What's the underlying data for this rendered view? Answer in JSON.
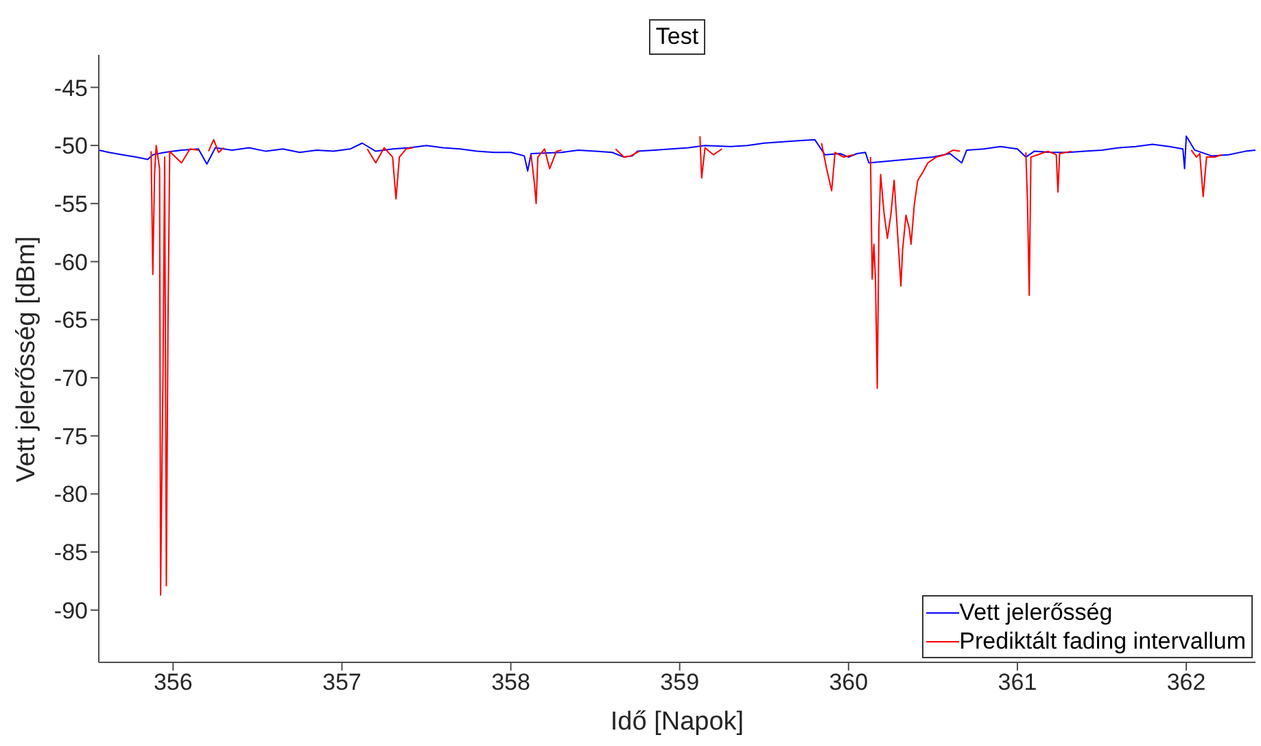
{
  "chart_data": {
    "type": "line",
    "title": "Test",
    "xlabel": "Idő [Napok]",
    "ylabel": "Vett jelerősség [dBm]",
    "xlim": [
      355.56,
      362.41
    ],
    "xticks": [
      356,
      357,
      358,
      359,
      360,
      361,
      362
    ],
    "ylim": [
      -94.5,
      -42.2
    ],
    "yticks": [
      -90,
      -85,
      -80,
      -75,
      -70,
      -65,
      -60,
      -55,
      -50,
      -45
    ],
    "legend": "bottom right",
    "marker": "none",
    "line_style": "solid",
    "series": [
      {
        "name": "Vett jelerősség",
        "color": "#0000ff",
        "x": [
          355.56,
          355.62,
          355.7,
          355.78,
          355.85,
          355.88,
          355.95,
          356.05,
          356.15,
          356.2,
          356.25,
          356.35,
          356.45,
          356.55,
          356.65,
          356.75,
          356.85,
          356.95,
          357.05,
          357.12,
          357.2,
          357.3,
          357.4,
          357.5,
          357.6,
          357.7,
          357.8,
          357.9,
          358.0,
          358.08,
          358.1,
          358.12,
          358.3,
          358.4,
          358.5,
          358.6,
          358.67,
          358.72,
          358.75,
          358.85,
          358.95,
          359.05,
          359.15,
          359.3,
          359.4,
          359.5,
          359.6,
          359.7,
          359.8,
          359.86,
          359.95,
          360.0,
          360.05,
          360.1,
          360.12,
          360.5,
          360.6,
          360.67,
          360.7,
          360.8,
          360.9,
          361.0,
          361.05,
          361.1,
          361.2,
          361.3,
          361.4,
          361.5,
          361.6,
          361.7,
          361.8,
          361.9,
          361.98,
          361.99,
          362.0,
          362.05,
          362.15,
          362.25,
          362.35,
          362.41
        ],
        "values": [
          -50.4,
          -50.6,
          -50.8,
          -51.0,
          -51.2,
          -50.8,
          -50.6,
          -50.4,
          -50.3,
          -51.6,
          -50.2,
          -50.4,
          -50.2,
          -50.5,
          -50.3,
          -50.6,
          -50.4,
          -50.5,
          -50.3,
          -49.8,
          -50.5,
          -50.3,
          -50.2,
          -50.0,
          -50.2,
          -50.3,
          -50.5,
          -50.6,
          -50.6,
          -50.9,
          -52.2,
          -50.7,
          -50.6,
          -50.4,
          -50.5,
          -50.6,
          -51.0,
          -50.9,
          -50.5,
          -50.4,
          -50.3,
          -50.2,
          -50.0,
          -50.1,
          -50.0,
          -49.8,
          -49.7,
          -49.6,
          -49.5,
          -50.8,
          -50.7,
          -51.0,
          -50.7,
          -50.6,
          -51.5,
          -51.0,
          -50.7,
          -51.5,
          -50.4,
          -50.3,
          -50.1,
          -50.3,
          -51.0,
          -50.5,
          -50.6,
          -50.6,
          -50.5,
          -50.4,
          -50.2,
          -50.1,
          -49.9,
          -50.1,
          -50.3,
          -52.0,
          -49.2,
          -50.4,
          -50.9,
          -50.8,
          -50.5,
          -50.4
        ]
      },
      {
        "name": "Prediktált fading intervallum",
        "color": "#ff0000",
        "x": [
          355.87,
          355.88,
          355.89,
          355.9,
          355.92,
          355.926,
          355.94,
          355.95,
          355.96,
          355.97,
          355.98,
          356.0,
          356.05,
          356.1,
          356.15,
          356.17,
          356.21,
          356.24,
          356.27,
          356.3,
          356.32,
          357.15,
          357.2,
          357.25,
          357.3,
          357.32,
          357.34,
          357.38,
          357.42,
          357.5,
          358.12,
          358.14,
          358.15,
          358.16,
          358.2,
          358.23,
          358.27,
          358.3,
          358.4,
          358.62,
          358.67,
          358.71,
          358.76,
          358.8,
          359.12,
          359.13,
          359.15,
          359.2,
          359.25,
          359.4,
          359.84,
          359.87,
          359.9,
          359.92,
          359.97,
          360.03,
          360.08,
          360.13,
          360.14,
          360.15,
          360.16,
          360.17,
          360.18,
          360.19,
          360.21,
          360.23,
          360.25,
          360.27,
          360.29,
          360.31,
          360.32,
          360.34,
          360.36,
          360.37,
          360.39,
          360.41,
          360.44,
          360.47,
          360.52,
          360.57,
          360.62,
          360.66,
          360.8,
          361.05,
          361.06,
          361.07,
          361.08,
          361.12,
          361.18,
          361.23,
          361.24,
          361.25,
          361.32,
          361.5,
          362.03,
          362.06,
          362.08,
          362.1,
          362.12,
          362.17,
          362.21
        ],
        "values": [
          -50.5,
          -61.1,
          -52.5,
          -50.0,
          -52.0,
          -88.7,
          -70.0,
          -51.0,
          -87.9,
          -65.0,
          -50.5,
          -50.8,
          -51.5,
          -50.3,
          -50.4,
          null,
          -50.5,
          -49.5,
          -50.6,
          -50.2,
          null,
          -50.3,
          -51.5,
          -50.2,
          -51.0,
          -54.6,
          -51.0,
          -50.3,
          -50.2,
          null,
          -50.8,
          -53.3,
          -55.0,
          -51.0,
          -50.3,
          -52.0,
          -50.5,
          -50.4,
          null,
          -50.3,
          -51.0,
          -50.9,
          -50.5,
          null,
          -49.2,
          -52.8,
          -50.2,
          -50.8,
          -50.3,
          null,
          -49.8,
          -52.0,
          -53.9,
          -50.6,
          -51.0,
          -50.8,
          null,
          -51.0,
          -61.5,
          -58.5,
          -61.8,
          -70.9,
          -57.0,
          -52.5,
          -55.8,
          -58.0,
          -56.0,
          -53.0,
          -57.5,
          -62.1,
          -59.0,
          -56.0,
          -57.2,
          -58.5,
          -55.0,
          -53.0,
          -52.3,
          -51.5,
          -51.0,
          -50.8,
          -50.4,
          -50.5,
          null,
          -50.6,
          -55.0,
          -62.9,
          -51.0,
          -50.8,
          -50.5,
          -50.8,
          -54.0,
          -50.7,
          -50.5,
          null,
          -50.4,
          -51.0,
          -50.7,
          -54.4,
          -51.0,
          -51.0,
          -50.8
        ]
      }
    ]
  }
}
